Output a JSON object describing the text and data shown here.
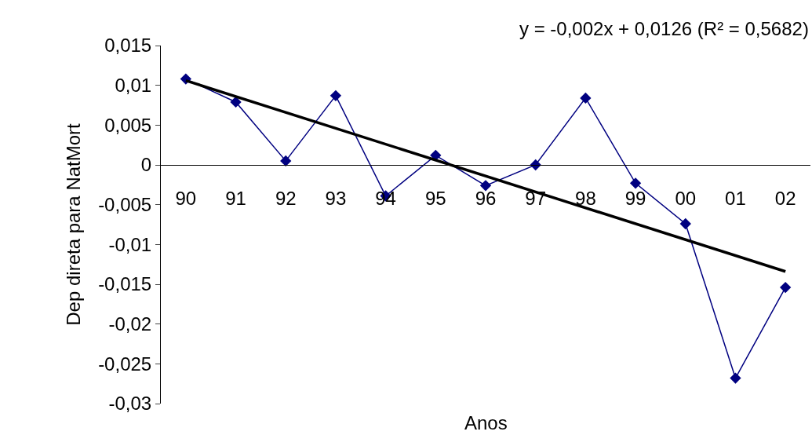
{
  "chart_data": {
    "type": "line",
    "ylabel": "Dep direta para NatMort",
    "xlabel": "Anos",
    "annotations": [
      "y = -0,002x + 0,0126 (R² = 0,5682)"
    ],
    "categories": [
      "90",
      "91",
      "92",
      "93",
      "94",
      "95",
      "96",
      "97",
      "98",
      "99",
      "00",
      "01",
      "02"
    ],
    "series": [
      {
        "color": "#000080",
        "marker": "diamond",
        "values": [
          0.0108,
          0.0079,
          0.0005,
          0.0087,
          -0.0039,
          0.0012,
          -0.0026,
          0.0,
          0.0084,
          -0.0023,
          -0.0074,
          -0.0268,
          -0.0154
        ]
      },
      {
        "type": "line",
        "color": "#000000",
        "marker": "none",
        "x": [
          "90",
          "02"
        ],
        "values": [
          0.0106,
          -0.0134
        ]
      }
    ],
    "ylim": [
      -0.03,
      0.015
    ],
    "yticks": [
      {
        "value": 0.015,
        "label": "0,015"
      },
      {
        "value": 0.01,
        "label": "0,01"
      },
      {
        "value": 0.005,
        "label": "0,005"
      },
      {
        "value": 0,
        "label": "0"
      },
      {
        "value": -0.005,
        "label": "-0,005"
      },
      {
        "value": -0.01,
        "label": "-0,01"
      },
      {
        "value": -0.015,
        "label": "-0,015"
      },
      {
        "value": -0.02,
        "label": "-0,02"
      },
      {
        "value": -0.025,
        "label": "-0,025"
      },
      {
        "value": -0.03,
        "label": "-0,03"
      }
    ]
  }
}
